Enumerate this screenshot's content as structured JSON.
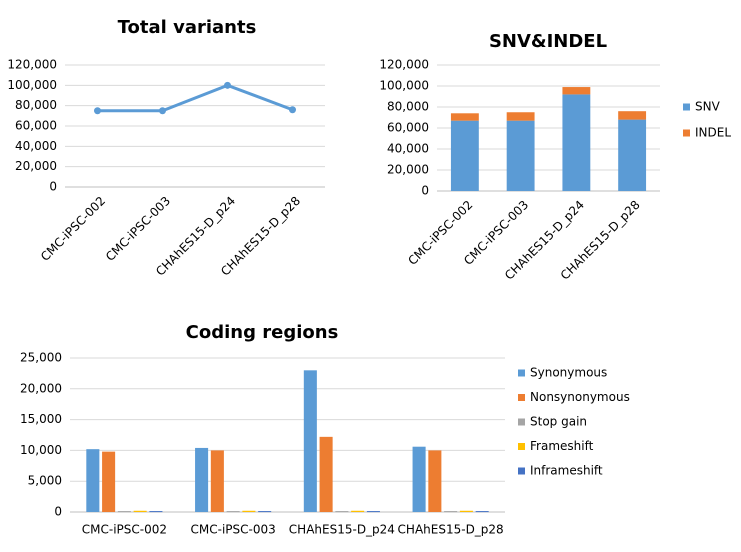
{
  "chart_data": [
    {
      "type": "line",
      "title": "Total variants",
      "categories": [
        "CMC-iPSC-002",
        "CMC-iPSC-003",
        "CHAhES15-D_p24",
        "CHAhES15-D_p28"
      ],
      "values": [
        75000,
        75000,
        100000,
        76000
      ],
      "color": "#5b9bd5",
      "ylim": [
        0,
        120000
      ],
      "yticks": [
        0,
        {
          "value": 20000,
          "label": "20,000"
        },
        {
          "value": 40000,
          "label": "40,000"
        },
        {
          "value": 60000,
          "label": "60,000"
        },
        {
          "value": 80000,
          "label": "80,000"
        },
        {
          "value": 100000,
          "label": "100,000"
        },
        {
          "value": 120000,
          "label": "120,000"
        }
      ],
      "grid": true
    },
    {
      "type": "stacked_bar",
      "title": "SNV&INDEL",
      "categories": [
        "CMC-iPSC-002",
        "CMC-iPSC-003",
        "CHAhES15-D_p24",
        "CHAhES15-D_p28"
      ],
      "series": [
        {
          "name": "SNV",
          "color": "#5b9bd5",
          "values": [
            67000,
            67000,
            92000,
            68000
          ]
        },
        {
          "name": "INDEL",
          "color": "#ed7d31",
          "values": [
            7000,
            8000,
            7000,
            8000
          ]
        }
      ],
      "ylim": [
        0,
        120000
      ],
      "yticks": [
        0,
        {
          "value": 20000,
          "label": "20,000"
        },
        {
          "value": 40000,
          "label": "40,000"
        },
        {
          "value": 60000,
          "label": "60,000"
        },
        {
          "value": 80000,
          "label": "80,000"
        },
        {
          "value": 100000,
          "label": "100,000"
        },
        {
          "value": 120000,
          "label": "120,000"
        }
      ],
      "grid": true,
      "legend": "right"
    },
    {
      "type": "bar",
      "title": "Coding regions",
      "categories": [
        "CMC-iPSC-002",
        "CMC-iPSC-003",
        "CHAhES15-D_p24",
        "CHAhES15-D_p28"
      ],
      "series": [
        {
          "name": "Synonymous",
          "color": "#5b9bd5",
          "values": [
            10200,
            10400,
            23000,
            10600
          ]
        },
        {
          "name": "Nonsynonymous",
          "color": "#ed7d31",
          "values": [
            9800,
            10000,
            12200,
            10000
          ]
        },
        {
          "name": "Stop gain",
          "color": "#a5a5a5",
          "values": [
            150,
            150,
            150,
            150
          ]
        },
        {
          "name": "Frameshift",
          "color": "#ffc000",
          "values": [
            200,
            200,
            200,
            200
          ]
        },
        {
          "name": "Inframeshift",
          "color": "#4472c4",
          "values": [
            150,
            150,
            150,
            150
          ]
        }
      ],
      "ylim": [
        0,
        25000
      ],
      "yticks": [
        0,
        {
          "value": 5000,
          "label": "5,000"
        },
        {
          "value": 10000,
          "label": "10,000"
        },
        {
          "value": 15000,
          "label": "15,000"
        },
        {
          "value": 20000,
          "label": "20,000"
        },
        {
          "value": 25000,
          "label": "25,000"
        }
      ],
      "grid": true,
      "legend": "right"
    }
  ]
}
